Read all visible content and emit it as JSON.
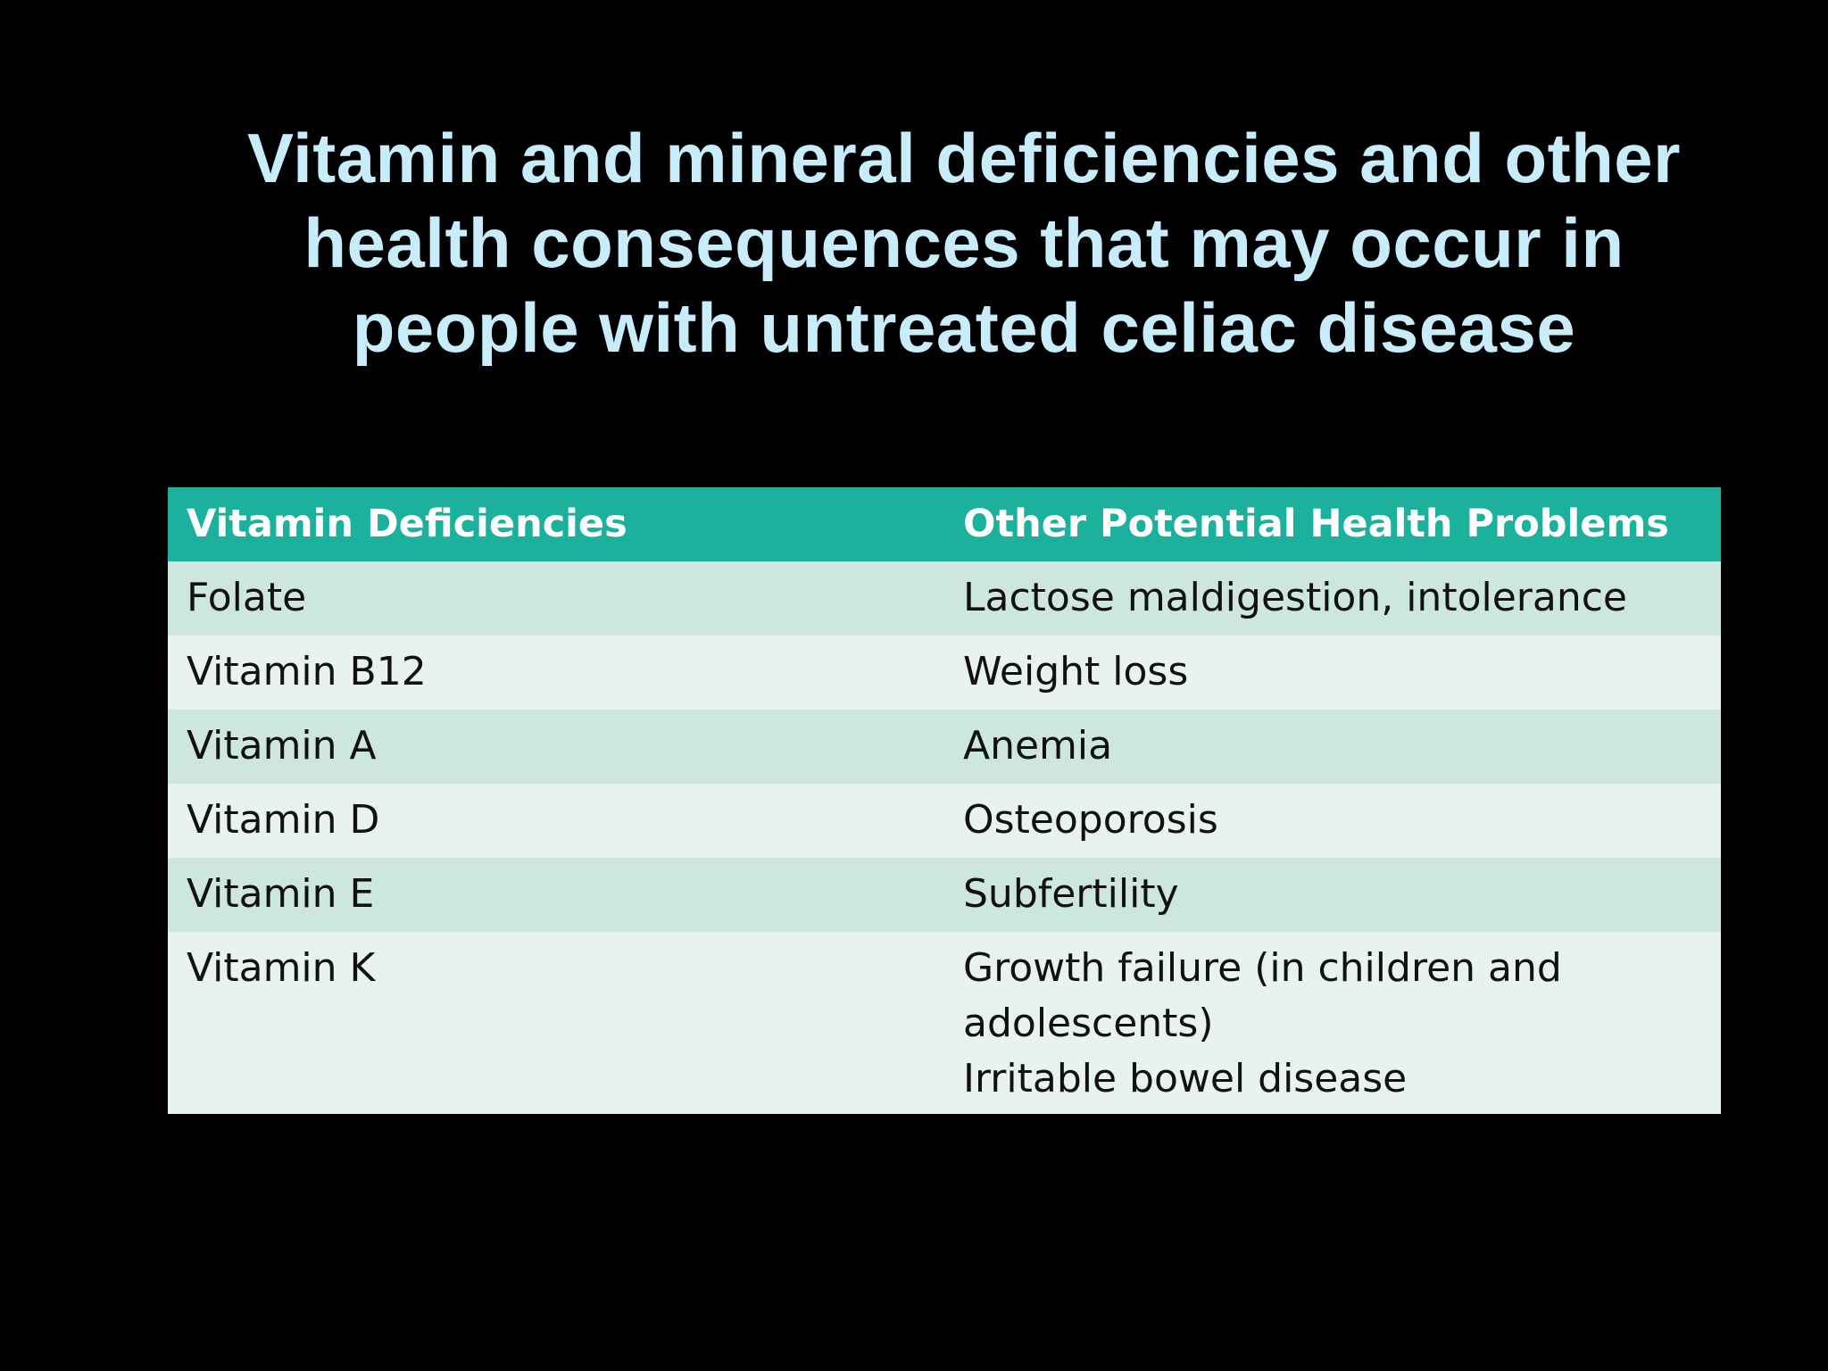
{
  "title": {
    "line1": "Vitamin and mineral deficiencies and other",
    "line2": "health consequences that may occur in",
    "line3": "people with untreated celiac disease"
  },
  "table": {
    "headers": [
      "Vitamin Deficiencies",
      "Other Potential Health Problems"
    ],
    "rows": [
      {
        "vitamin": "Folate",
        "problem": [
          "Lactose maldigestion, intolerance"
        ]
      },
      {
        "vitamin": "Vitamin B12",
        "problem": [
          "Weight loss"
        ]
      },
      {
        "vitamin": "Vitamin A",
        "problem": [
          "Anemia"
        ]
      },
      {
        "vitamin": "Vitamin D",
        "problem": [
          "Osteoporosis"
        ]
      },
      {
        "vitamin": "Vitamin E",
        "problem": [
          "Subfertility"
        ]
      },
      {
        "vitamin": "Vitamin K",
        "problem": [
          "Growth failure (in children and",
          "adolescents)",
          "Irritable bowel disease"
        ]
      }
    ]
  },
  "colors": {
    "background": "#000000",
    "title": "#c9ecfa",
    "header_fill": "#1cb19c",
    "row_band_dark": "#cde7df",
    "row_band_light": "#e8f3ef"
  }
}
